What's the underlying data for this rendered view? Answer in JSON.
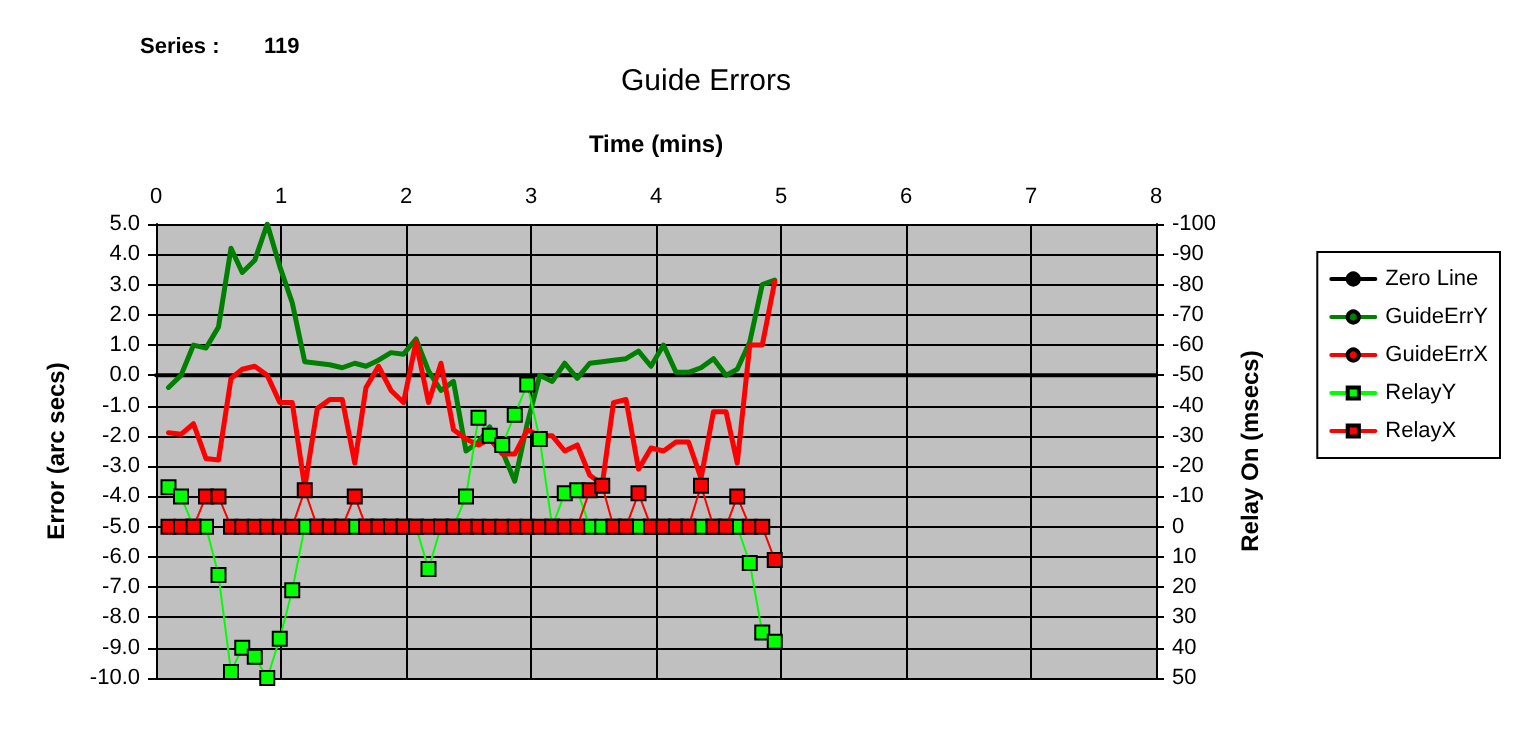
{
  "chart_data": {
    "type": "line",
    "title": "Guide Errors",
    "xlabel": "Time (mins)",
    "ylabel": "Error (arc secs)",
    "y2label": "Relay On (msecs)",
    "annotations": [
      "Series :",
      "119"
    ],
    "x": [
      0.1,
      0.2,
      0.3,
      0.4,
      0.5,
      0.6,
      0.69,
      0.79,
      0.89,
      0.99,
      1.09,
      1.19,
      1.29,
      1.39,
      1.49,
      1.59,
      1.68,
      1.78,
      1.88,
      1.98,
      2.08,
      2.18,
      2.28,
      2.38,
      2.48,
      2.58,
      2.67,
      2.77,
      2.87,
      2.97,
      3.07,
      3.17,
      3.27,
      3.37,
      3.47,
      3.57,
      3.66,
      3.76,
      3.86,
      3.96,
      4.06,
      4.16,
      4.26,
      4.36,
      4.46,
      4.56,
      4.65,
      4.75,
      4.85,
      4.95
    ],
    "xlim": [
      0,
      8
    ],
    "xticks": [
      0,
      1,
      2,
      3,
      4,
      5,
      6,
      7,
      8
    ],
    "ylim": [
      -10,
      5
    ],
    "yticks": [
      {
        "value": -10,
        "label": "-10.0"
      },
      {
        "value": -9,
        "label": "-9.0"
      },
      {
        "value": -8,
        "label": "-8.0"
      },
      {
        "value": -7,
        "label": "-7.0"
      },
      {
        "value": -6,
        "label": "-6.0"
      },
      {
        "value": -5,
        "label": "-5.0"
      },
      {
        "value": -4,
        "label": "-4.0"
      },
      {
        "value": -3,
        "label": "-3.0"
      },
      {
        "value": -2,
        "label": "-2.0"
      },
      {
        "value": -1,
        "label": "-1.0"
      },
      {
        "value": 0,
        "label": "0.0"
      },
      {
        "value": 1,
        "label": "1.0"
      },
      {
        "value": 2,
        "label": "2.0"
      },
      {
        "value": 3,
        "label": "3.0"
      },
      {
        "value": 4,
        "label": "4.0"
      },
      {
        "value": 5,
        "label": "5.0"
      }
    ],
    "y2lim": [
      50,
      -100
    ],
    "y2ticks": [
      50,
      40,
      30,
      20,
      10,
      0,
      -10,
      -20,
      -30,
      -40,
      -50,
      -60,
      -70,
      -80,
      -90,
      -100
    ],
    "grid": true,
    "legend": "right",
    "series": [
      {
        "name": "Zero Line",
        "color": "#000000",
        "marker": "none",
        "x": [
          0,
          8
        ],
        "values": [
          0,
          0
        ]
      },
      {
        "name": "GuideErrY",
        "color": "#008000",
        "marker": "none",
        "values": [
          -0.4,
          0.0,
          1.0,
          0.9,
          1.6,
          4.2,
          3.4,
          3.8,
          5.0,
          3.6,
          2.4,
          0.45,
          0.4,
          0.35,
          0.25,
          0.4,
          0.3,
          0.5,
          0.75,
          0.7,
          1.2,
          0.15,
          -0.5,
          -0.2,
          -2.5,
          -2.2,
          -1.7,
          -2.5,
          -3.5,
          -1.6,
          0.0,
          -0.2,
          0.4,
          -0.1,
          0.4,
          0.45,
          0.5,
          0.55,
          0.8,
          0.3,
          1.0,
          0.1,
          0.1,
          0.25,
          0.55,
          0.0,
          0.2,
          1.1,
          3.0,
          3.15
        ]
      },
      {
        "name": "GuideErrX",
        "color": "#ff0000",
        "marker": "none",
        "values": [
          -1.9,
          -1.95,
          -1.6,
          -2.75,
          -2.8,
          -0.1,
          0.2,
          0.3,
          0.0,
          -0.9,
          -0.9,
          -3.7,
          -1.1,
          -0.8,
          -0.8,
          -2.9,
          -0.4,
          0.3,
          -0.5,
          -0.9,
          1.1,
          -0.9,
          0.4,
          -1.8,
          -2.1,
          -2.3,
          -2.1,
          -2.6,
          -2.6,
          -1.8,
          -2.0,
          -2.0,
          -2.5,
          -2.3,
          -3.3,
          -3.6,
          -0.9,
          -0.8,
          -3.1,
          -2.4,
          -2.5,
          -2.2,
          -2.2,
          -3.4,
          -1.2,
          -1.2,
          -2.9,
          1.0,
          1.0,
          3.1
        ]
      },
      {
        "name": "RelayY",
        "color": "#00ff00",
        "marker": "square",
        "axis": "y2",
        "values": [
          -13,
          -10,
          0,
          0,
          16,
          48,
          40,
          43,
          50,
          37,
          21,
          0,
          0,
          0,
          0,
          0,
          0,
          0,
          0,
          0,
          0,
          14,
          0,
          0,
          -10,
          -36,
          -30,
          -27,
          -37,
          -47,
          -29,
          0,
          -11,
          -12,
          0,
          0,
          0,
          0,
          0,
          0,
          0,
          0,
          0,
          0,
          0,
          0,
          0,
          12,
          35,
          38
        ]
      },
      {
        "name": "RelayX",
        "color": "#ff0000",
        "marker": "square",
        "axis": "y2",
        "values": [
          0,
          0,
          0,
          -10,
          -10,
          0,
          0,
          0,
          0,
          0,
          0,
          -12,
          0,
          0,
          0,
          -10,
          0,
          0,
          0,
          0,
          0,
          0,
          0,
          0,
          0,
          0,
          0,
          0,
          0,
          0,
          0,
          0,
          0,
          0,
          -12,
          -13.5,
          0,
          0,
          -11,
          0,
          0,
          0,
          0,
          -13.5,
          0,
          0,
          -10,
          0,
          0,
          11
        ]
      }
    ]
  }
}
